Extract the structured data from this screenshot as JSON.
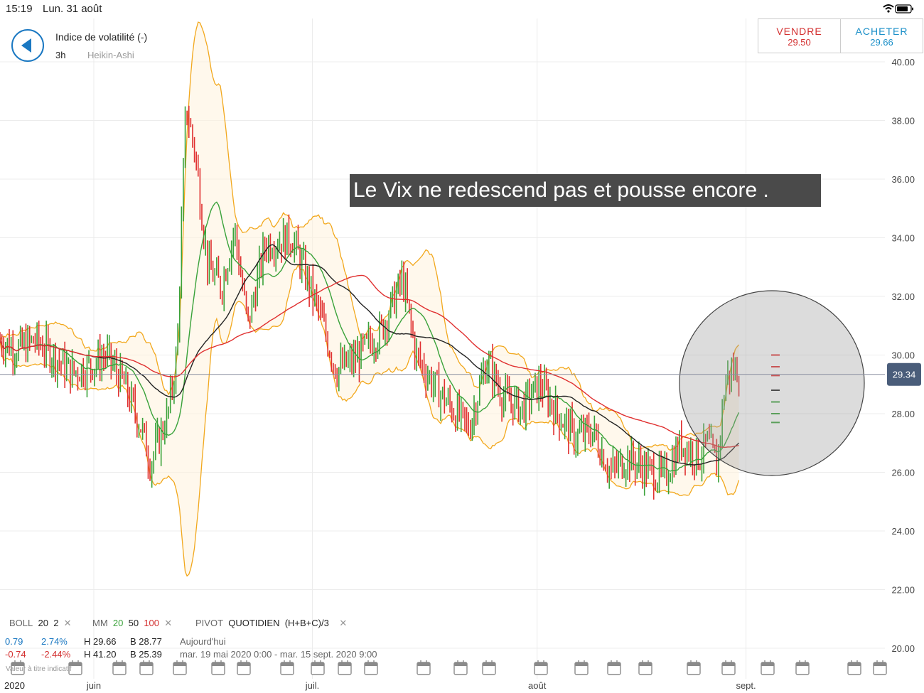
{
  "status_bar": {
    "time": "15:19",
    "date": "Lun. 31 août"
  },
  "header": {
    "instrument": "Indice de volatilité (-)",
    "timeframe": "3h",
    "chart_type": "Heikin-Ashi"
  },
  "trade": {
    "sell_label": "VENDRE",
    "sell_price": "29.50",
    "buy_label": "ACHETER",
    "buy_price": "29.66"
  },
  "annotation": "Le Vix ne redescend pas et pousse encore .",
  "indicators": {
    "boll": {
      "name": "BOLL",
      "period": "20",
      "dev": "2"
    },
    "mm": {
      "name": "MM",
      "p1": "20",
      "p2": "50",
      "p3": "100"
    },
    "pivot": {
      "name": "PIVOT",
      "period": "QUOTIDIEN",
      "formula": "(H+B+C)/3"
    }
  },
  "stats": {
    "change_up": "0.79",
    "pct_up": "2.74%",
    "high_today": "H 29.66",
    "low_today": "B 28.77",
    "today_label": "Aujourd'hui",
    "change_down": "-0.74",
    "pct_down": "-2.44%",
    "high_range": "H 41.20",
    "low_range": "B 25.39",
    "range_label": "mar. 19 mai 2020 0:00 - mar. 15 sept. 2020 9:00"
  },
  "value_note": "Valeur à titre indicatif",
  "year_label": "2020",
  "colors": {
    "up": "#3aa23a",
    "down": "#e03030",
    "boll": "#f2a81d",
    "mm20": "#3aa23a",
    "mm50": "#222222",
    "mm100": "#e03030",
    "price_tag": "#4a5d7a"
  },
  "chart_data": {
    "type": "candlestick",
    "ylim": [
      20,
      41
    ],
    "yticks": [
      "20.00",
      "22.00",
      "24.00",
      "26.00",
      "28.00",
      "30.00",
      "32.00",
      "34.00",
      "36.00",
      "38.00",
      "40.00"
    ],
    "xticks": [
      {
        "label": "juin",
        "x": 0.106
      },
      {
        "label": "juil.",
        "x": 0.353
      },
      {
        "label": "août",
        "x": 0.607
      },
      {
        "label": "sept.",
        "x": 0.843
      }
    ],
    "current_price": "29.34",
    "series": [
      {
        "name": "BOLL 20 2"
      },
      {
        "name": "MM 20"
      },
      {
        "name": "MM 50"
      },
      {
        "name": "MM 100"
      }
    ],
    "trend": [
      [
        0,
        30.5
      ],
      [
        0.02,
        30.2
      ],
      [
        0.04,
        30.5
      ],
      [
        0.06,
        30.0
      ],
      [
        0.08,
        29.4
      ],
      [
        0.1,
        29.6
      ],
      [
        0.12,
        30.0
      ],
      [
        0.14,
        29.0
      ],
      [
        0.16,
        27.5
      ],
      [
        0.17,
        26.3
      ],
      [
        0.19,
        28.0
      ],
      [
        0.2,
        30.0
      ],
      [
        0.21,
        38.5
      ],
      [
        0.22,
        37.0
      ],
      [
        0.235,
        33.0
      ],
      [
        0.25,
        32.3
      ],
      [
        0.265,
        34.3
      ],
      [
        0.28,
        31.0
      ],
      [
        0.3,
        33.8
      ],
      [
        0.33,
        34.0
      ],
      [
        0.36,
        31.5
      ],
      [
        0.38,
        29.5
      ],
      [
        0.4,
        29.8
      ],
      [
        0.43,
        30.8
      ],
      [
        0.455,
        32.6
      ],
      [
        0.47,
        30.0
      ],
      [
        0.49,
        29.0
      ],
      [
        0.51,
        28.2
      ],
      [
        0.53,
        27.5
      ],
      [
        0.55,
        29.8
      ],
      [
        0.57,
        28.5
      ],
      [
        0.59,
        28.2
      ],
      [
        0.61,
        29.0
      ],
      [
        0.63,
        28.0
      ],
      [
        0.65,
        27.2
      ],
      [
        0.67,
        27.4
      ],
      [
        0.69,
        26.0
      ],
      [
        0.71,
        26.5
      ],
      [
        0.73,
        26.1
      ],
      [
        0.75,
        25.8
      ],
      [
        0.77,
        27.0
      ],
      [
        0.79,
        26.5
      ],
      [
        0.8,
        27.0
      ],
      [
        0.81,
        26.2
      ],
      [
        0.82,
        29.2
      ],
      [
        0.83,
        29.5
      ]
    ]
  }
}
